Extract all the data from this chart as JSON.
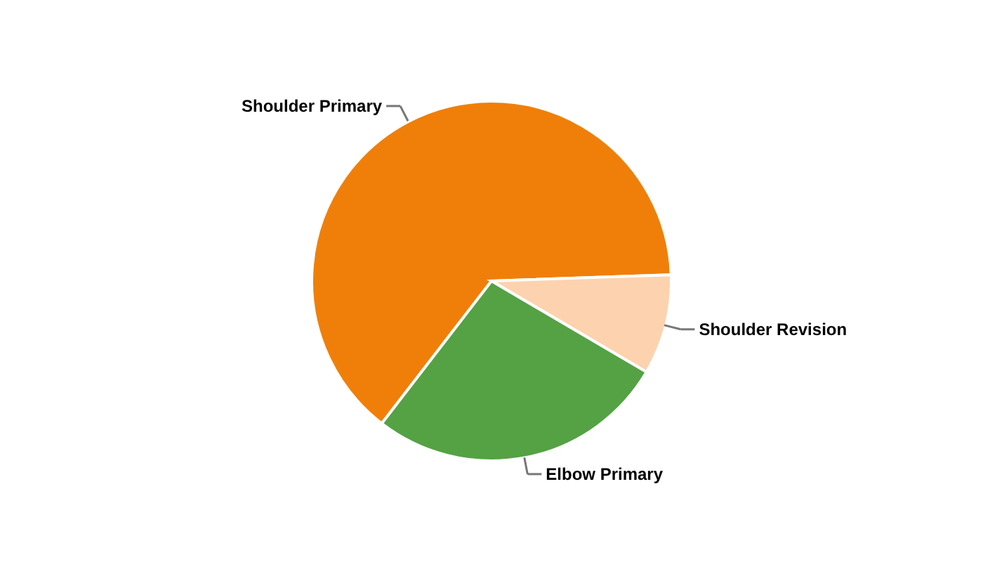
{
  "chart_data": {
    "type": "pie",
    "categories": [
      "Shoulder Primary",
      "Shoulder Revision",
      "Elbow Primary"
    ],
    "values": [
      64,
      9,
      27
    ],
    "colors": [
      "#f07f09",
      "#fcd3ae",
      "#54a244"
    ]
  }
}
